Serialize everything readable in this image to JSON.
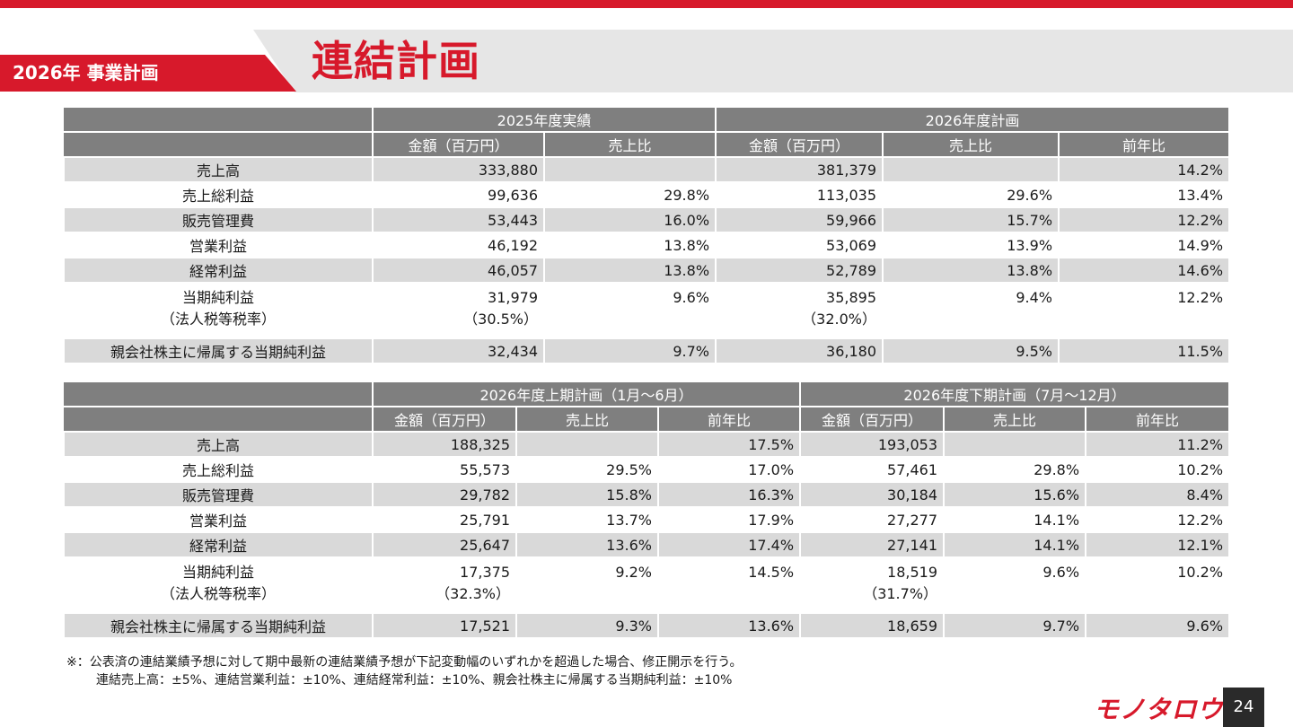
{
  "header": {
    "section_tag": "2026年 事業計画",
    "page_title": "連結計画"
  },
  "colors": {
    "accent": "#d7192b",
    "header_gray": "#7f7f7f",
    "row_shade": "#d9d9d9"
  },
  "table1": {
    "group_headers": [
      "2025年度実績",
      "2026年度計画"
    ],
    "sub_headers": [
      "金額（百万円）",
      "売上比",
      "金額（百万円）",
      "売上比",
      "前年比"
    ],
    "rows": [
      {
        "label": "売上高",
        "cells": [
          "333,880",
          "",
          "381,379",
          "",
          "14.2%"
        ]
      },
      {
        "label": "売上総利益",
        "cells": [
          "99,636",
          "29.8%",
          "113,035",
          "29.6%",
          "13.4%"
        ]
      },
      {
        "label": "販売管理費",
        "cells": [
          "53,443",
          "16.0%",
          "59,966",
          "15.7%",
          "12.2%"
        ]
      },
      {
        "label": "営業利益",
        "cells": [
          "46,192",
          "13.8%",
          "53,069",
          "13.9%",
          "14.9%"
        ]
      },
      {
        "label": "経常利益",
        "cells": [
          "46,057",
          "13.8%",
          "52,789",
          "13.8%",
          "14.6%"
        ]
      },
      {
        "label": "当期純利益",
        "label2": "（法人税等税率）",
        "cells": [
          "31,979",
          "9.6%",
          "35,895",
          "9.4%",
          "12.2%"
        ],
        "sub": [
          "（30.5%）",
          "",
          "（32.0%）",
          "",
          ""
        ]
      },
      {
        "label": "親会社株主に帰属する当期純利益",
        "cells": [
          "32,434",
          "9.7%",
          "36,180",
          "9.5%",
          "11.5%"
        ]
      }
    ]
  },
  "table2": {
    "group_headers": [
      "2026年度上期計画（1月～6月）",
      "2026年度下期計画（7月～12月）"
    ],
    "sub_headers": [
      "金額（百万円）",
      "売上比",
      "前年比",
      "金額（百万円）",
      "売上比",
      "前年比"
    ],
    "rows": [
      {
        "label": "売上高",
        "cells": [
          "188,325",
          "",
          "17.5%",
          "193,053",
          "",
          "11.2%"
        ]
      },
      {
        "label": "売上総利益",
        "cells": [
          "55,573",
          "29.5%",
          "17.0%",
          "57,461",
          "29.8%",
          "10.2%"
        ]
      },
      {
        "label": "販売管理費",
        "cells": [
          "29,782",
          "15.8%",
          "16.3%",
          "30,184",
          "15.6%",
          "8.4%"
        ]
      },
      {
        "label": "営業利益",
        "cells": [
          "25,791",
          "13.7%",
          "17.9%",
          "27,277",
          "14.1%",
          "12.2%"
        ]
      },
      {
        "label": "経常利益",
        "cells": [
          "25,647",
          "13.6%",
          "17.4%",
          "27,141",
          "14.1%",
          "12.1%"
        ]
      },
      {
        "label": "当期純利益",
        "label2": "（法人税等税率）",
        "cells": [
          "17,375",
          "9.2%",
          "14.5%",
          "18,519",
          "9.6%",
          "10.2%"
        ],
        "sub": [
          "（32.3%）",
          "",
          "",
          "（31.7%）",
          "",
          ""
        ]
      },
      {
        "label": "親会社株主に帰属する当期純利益",
        "cells": [
          "17,521",
          "9.3%",
          "13.6%",
          "18,659",
          "9.7%",
          "9.6%"
        ]
      }
    ]
  },
  "footnote": {
    "line1": "※：公表済の連結業績予想に対して期中最新の連結業績予想が下記変動幅のいずれかを超過した場合、修正開示を行う。",
    "line2": "連結売上高：±5%、連結営業利益：±10%、連結経常利益：±10%、親会社株主に帰属する当期純利益：±10%"
  },
  "footer": {
    "logo_text": "モノタロウ",
    "page_number": "24"
  }
}
